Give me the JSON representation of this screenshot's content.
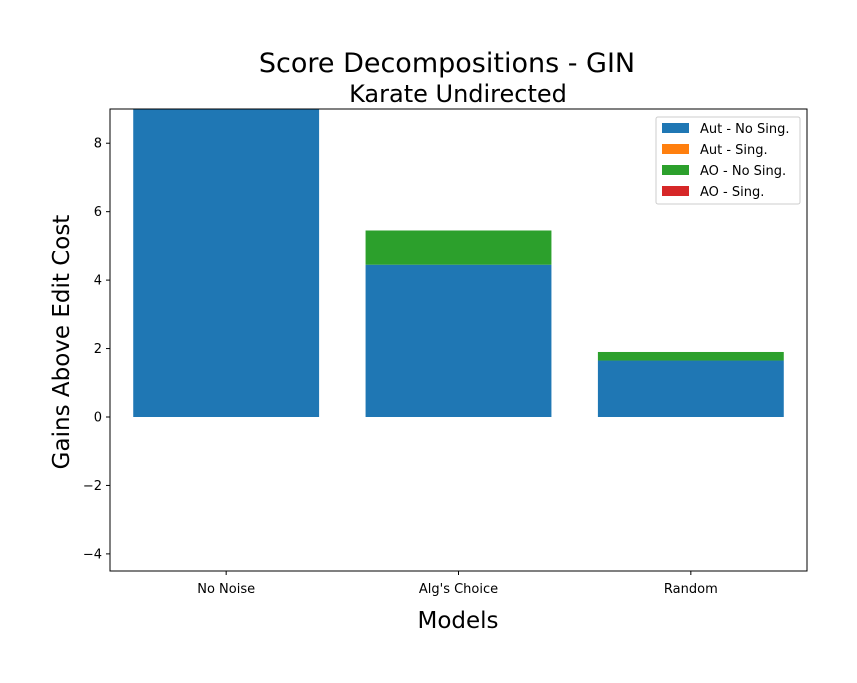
{
  "chart_data": {
    "type": "bar",
    "stacked": true,
    "title": "Score Decompositions - GIN",
    "subtitle": "Karate Undirected",
    "xlabel": "Models",
    "ylabel": "Gains Above Edit Cost",
    "categories": [
      "No Noise",
      "Alg's Choice",
      "Random"
    ],
    "ylim": [
      -4.5,
      9
    ],
    "yticks": [
      -4,
      -2,
      0,
      2,
      4,
      6,
      8
    ],
    "grid": false,
    "legend_position": "top-right",
    "series": [
      {
        "name": "Aut - No Sing.",
        "color": "#1f77b4",
        "values": [
          9.5,
          4.45,
          1.65
        ]
      },
      {
        "name": "Aut - Sing.",
        "color": "#ff7f0e",
        "values": [
          0,
          0,
          0
        ]
      },
      {
        "name": "AO - No Sing.",
        "color": "#2ca02c",
        "values": [
          0,
          1.0,
          0.25
        ]
      },
      {
        "name": "AO - Sing.",
        "color": "#d62728",
        "values": [
          0,
          0,
          0
        ]
      }
    ]
  }
}
